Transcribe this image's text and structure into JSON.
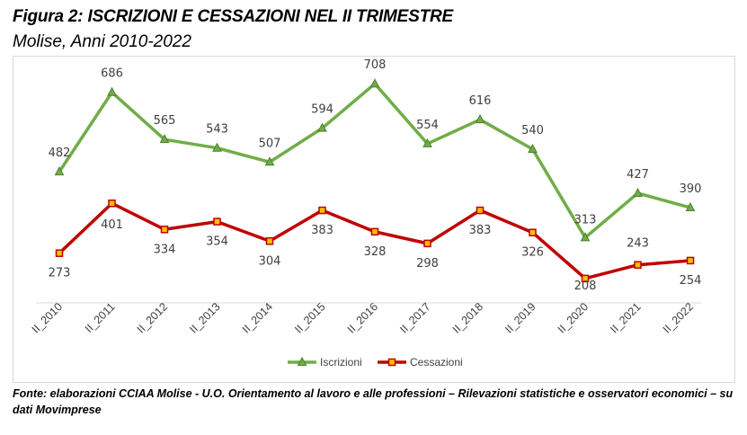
{
  "figure": {
    "title": "Figura 2: ISCRIZIONI E CESSAZIONI NEL II TRIMESTRE",
    "subtitle": "Molise, Anni 2010-2022",
    "source": "Fonte: elaborazioni CCIAA Molise - U.O. Orientamento al lavoro e alle professioni – Rilevazioni statistiche e osservatori economici – su dati Movimprese"
  },
  "chart_data": {
    "type": "line",
    "title": "",
    "xlabel": "",
    "ylabel": "",
    "categories": [
      "II_2010",
      "II_2011",
      "II_2012",
      "II_2013",
      "II_2014",
      "II_2015",
      "II_2016",
      "II_2017",
      "II_2018",
      "II_2019",
      "II_2020",
      "II_2021",
      "II_2022"
    ],
    "ylim": [
      150,
      750
    ],
    "grid": false,
    "legend_position": "bottom",
    "series": [
      {
        "name": "Iscrizioni",
        "color": "#70ad47",
        "marker": "triangle",
        "values": [
          482,
          686,
          565,
          543,
          507,
          594,
          708,
          554,
          616,
          540,
          313,
          427,
          390
        ]
      },
      {
        "name": "Cessazioni",
        "color": "#c00000",
        "marker": "square",
        "values": [
          273,
          401,
          334,
          354,
          304,
          383,
          328,
          298,
          383,
          326,
          208,
          243,
          254
        ]
      }
    ]
  }
}
